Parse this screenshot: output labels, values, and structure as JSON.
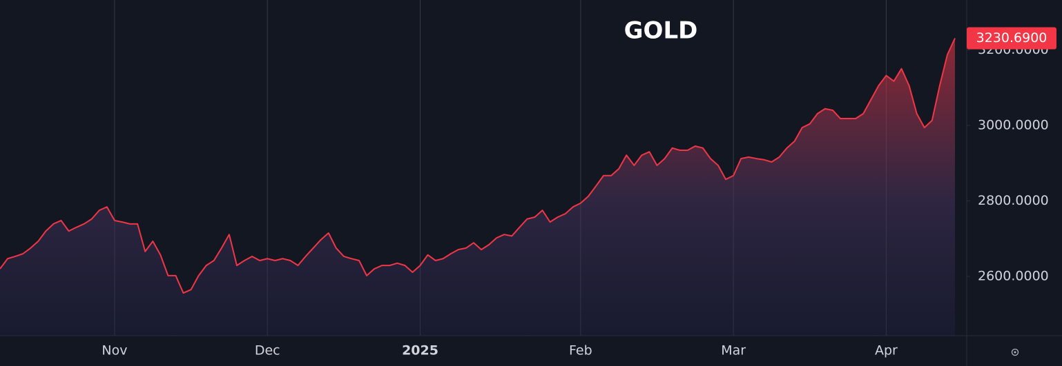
{
  "chart_data": {
    "type": "area",
    "title": "GOLD",
    "color": "#f23645",
    "categories": [
      null,
      null,
      null,
      null,
      null,
      null,
      null,
      null,
      null,
      null,
      null,
      null,
      null,
      null,
      null,
      "Nov",
      null,
      null,
      null,
      null,
      null,
      null,
      null,
      null,
      null,
      null,
      null,
      null,
      null,
      null,
      null,
      null,
      null,
      null,
      null,
      "Dec",
      null,
      null,
      null,
      null,
      null,
      null,
      null,
      null,
      null,
      null,
      null,
      null,
      null,
      null,
      null,
      null,
      null,
      null,
      null,
      "2025",
      null,
      null,
      null,
      null,
      null,
      null,
      null,
      null,
      null,
      null,
      null,
      null,
      null,
      null,
      null,
      null,
      null,
      null,
      null,
      null,
      "Feb",
      null,
      null,
      null,
      null,
      null,
      null,
      null,
      null,
      null,
      null,
      null,
      null,
      null,
      null,
      null,
      null,
      null,
      null,
      null,
      "Mar",
      null,
      null,
      null,
      null,
      null,
      null,
      null,
      null,
      null,
      null,
      null,
      null,
      null,
      null,
      null,
      null,
      null,
      null,
      null,
      "Apr",
      null,
      null,
      null,
      null,
      null,
      null,
      null,
      null,
      null
    ],
    "values": [
      2620,
      2647,
      2653,
      2660,
      2675,
      2693,
      2720,
      2739,
      2748,
      2720,
      2730,
      2739,
      2752,
      2775,
      2784,
      2748,
      2744,
      2739,
      2739,
      2666,
      2693,
      2657,
      2602,
      2602,
      2556,
      2565,
      2602,
      2629,
      2642,
      2675,
      2711,
      2629,
      2642,
      2653,
      2642,
      2647,
      2642,
      2647,
      2642,
      2629,
      2653,
      2675,
      2697,
      2715,
      2675,
      2653,
      2647,
      2642,
      2602,
      2620,
      2629,
      2629,
      2635,
      2629,
      2611,
      2629,
      2657,
      2642,
      2647,
      2660,
      2671,
      2675,
      2689,
      2671,
      2684,
      2702,
      2711,
      2707,
      2730,
      2752,
      2757,
      2775,
      2744,
      2757,
      2766,
      2784,
      2794,
      2812,
      2839,
      2867,
      2867,
      2885,
      2921,
      2894,
      2921,
      2930,
      2894,
      2912,
      2940,
      2934,
      2934,
      2945,
      2940,
      2912,
      2894,
      2857,
      2867,
      2912,
      2916,
      2912,
      2909,
      2903,
      2916,
      2940,
      2958,
      2994,
      3004,
      3031,
      3044,
      3040,
      3018,
      3018,
      3018,
      3031,
      3068,
      3105,
      3132,
      3117,
      3150,
      3105,
      3031,
      2994,
      3013,
      3105,
      3187,
      3230.69
    ],
    "last_price_label": "3230.6900",
    "ylim": [
      2443,
      3332
    ],
    "yticks": [
      {
        "value": 2600,
        "label": "2600.0000"
      },
      {
        "value": 2800,
        "label": "2800.0000"
      },
      {
        "value": 3000,
        "label": "3000.0000"
      },
      {
        "value": 3200,
        "label": "3200.0000"
      }
    ],
    "xgrid": true
  }
}
